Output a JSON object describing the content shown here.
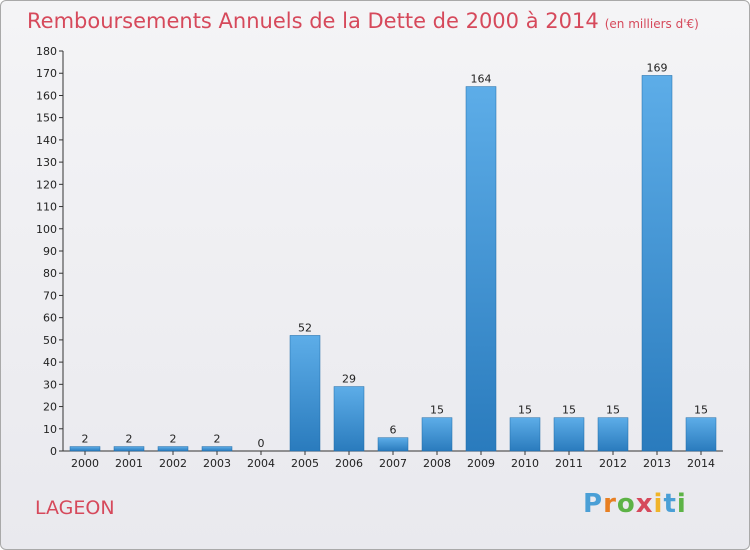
{
  "title": "Remboursements Annuels de la Dette de 2000 à 2014",
  "unit_note": "(en milliers d'€)",
  "place": "LAGEON",
  "brand": {
    "letters": [
      "P",
      "r",
      "o",
      "x",
      "i",
      "t",
      "i"
    ],
    "colors": [
      "#4a9fd6",
      "#e87f22",
      "#5db346",
      "#d6495b",
      "#f0b429",
      "#4a9fd6",
      "#5db346"
    ]
  },
  "colors": {
    "title": "#d6495b",
    "bar_light": "#5dade8",
    "bar_dark": "#2a7bbd"
  },
  "chart_data": {
    "type": "bar",
    "title": "Remboursements Annuels de la Dette de 2000 à 2014",
    "xlabel": "",
    "ylabel": "",
    "categories": [
      "2000",
      "2001",
      "2002",
      "2003",
      "2004",
      "2005",
      "2006",
      "2007",
      "2008",
      "2009",
      "2010",
      "2011",
      "2012",
      "2013",
      "2014"
    ],
    "values": [
      2,
      2,
      2,
      2,
      0,
      52,
      29,
      6,
      15,
      164,
      15,
      15,
      15,
      169,
      15
    ],
    "ylim": [
      0,
      180
    ],
    "yticks": [
      0,
      10,
      20,
      30,
      40,
      50,
      60,
      70,
      80,
      90,
      100,
      110,
      120,
      130,
      140,
      150,
      160,
      170,
      180
    ],
    "grid": false,
    "legend": "none"
  }
}
